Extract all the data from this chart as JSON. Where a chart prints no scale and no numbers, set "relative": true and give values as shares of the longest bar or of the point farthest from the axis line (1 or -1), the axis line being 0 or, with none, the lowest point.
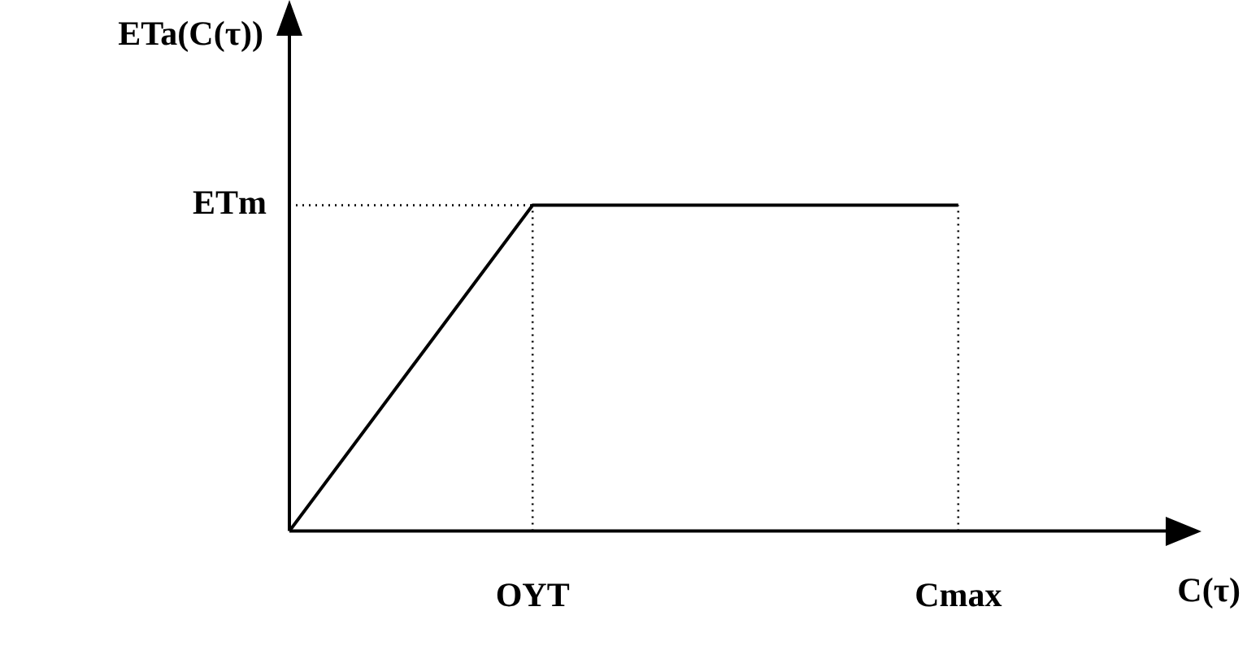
{
  "chart_data": {
    "type": "line",
    "relative": true,
    "xlabel": "C(τ)",
    "ylabel": "ETa(C(τ))",
    "categories": [
      null,
      null,
      null,
      null,
      "OYT",
      null,
      null,
      null,
      null,
      null,
      null,
      "Cmax",
      null,
      null,
      null,
      null
    ],
    "series": [
      {
        "values": [
          0,
          null,
          null,
          null,
          1,
          null,
          null,
          null,
          null,
          null,
          null,
          1,
          null,
          null,
          null,
          null
        ],
        "color": "#000000",
        "line_style": "solid"
      },
      {
        "values": [
          1,
          null,
          null,
          null,
          1,
          null,
          null,
          null,
          null,
          null,
          null,
          null,
          null,
          null,
          null,
          null
        ],
        "color": "#000000",
        "line_style": "dotted"
      },
      {
        "x": [
          "OYT",
          "OYT"
        ],
        "values": [
          0,
          1
        ],
        "color": "#000000",
        "line_style": "dotted"
      },
      {
        "x": [
          "Cmax",
          "Cmax"
        ],
        "values": [
          0,
          1
        ],
        "color": "#000000",
        "line_style": "dotted"
      }
    ],
    "annotations": [
      "ETm"
    ],
    "grid": false,
    "legend": false,
    "marker": "none"
  }
}
